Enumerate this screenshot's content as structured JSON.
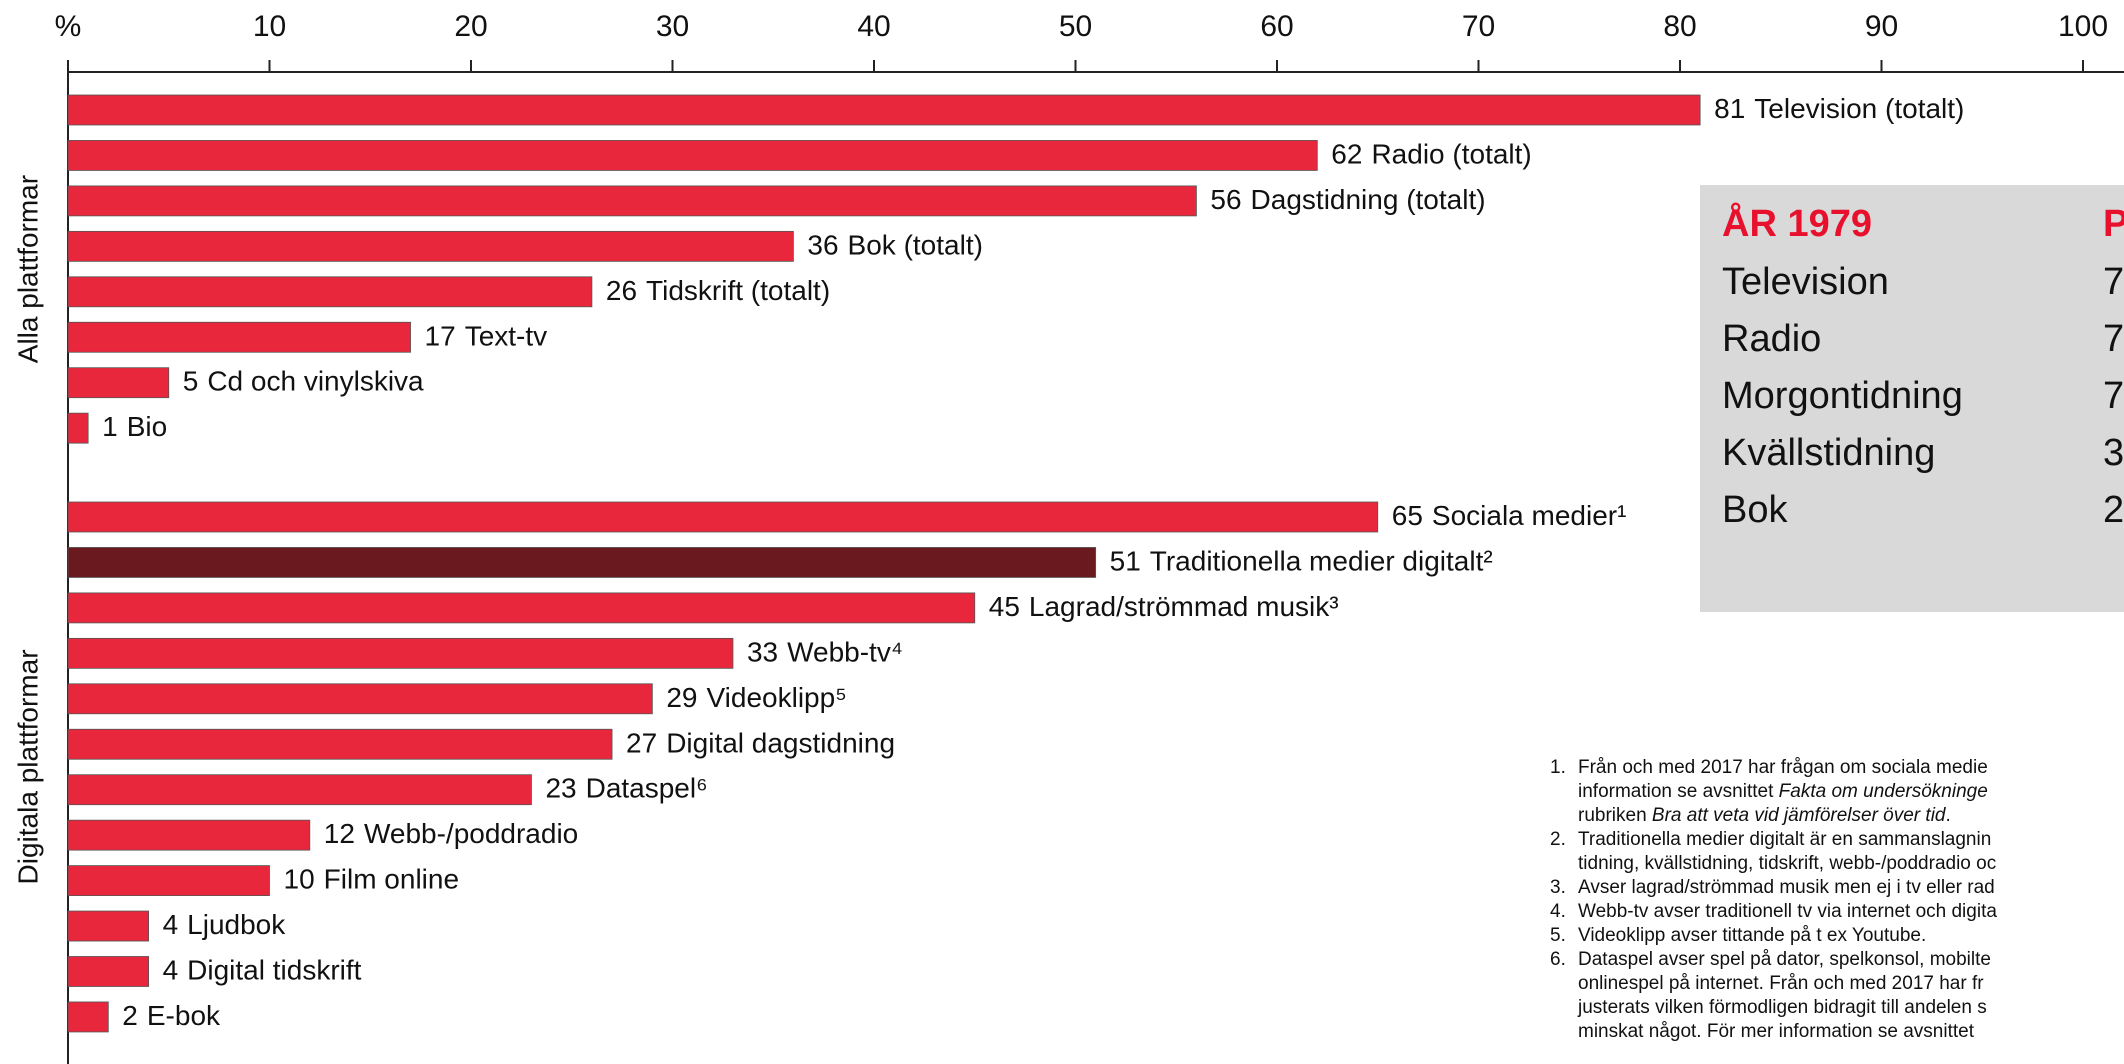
{
  "chart_data": [
    {
      "type": "bar",
      "orientation": "horizontal",
      "group_label": "Alla plattformar",
      "xlim": [
        0,
        100
      ],
      "xticks": [
        {
          "value": 0,
          "label": "%"
        },
        10,
        20,
        30,
        40,
        50,
        60,
        70,
        80,
        90,
        100
      ],
      "categories": [
        "Television (totalt)",
        "Radio (totalt)",
        "Dagstidning (totalt)",
        "Bok (totalt)",
        "Tidskrift (totalt)",
        "Text-tv",
        "Cd och vinylskiva",
        "Bio"
      ],
      "values": [
        81,
        62,
        56,
        36,
        26,
        17,
        5,
        1
      ],
      "colors": [
        "#e8273c",
        "#e8273c",
        "#e8273c",
        "#e8273c",
        "#e8273c",
        "#e8273c",
        "#e8273c",
        "#e8273c"
      ]
    },
    {
      "type": "bar",
      "orientation": "horizontal",
      "group_label": "Digitala plattformar",
      "xlim": [
        0,
        100
      ],
      "categories": [
        "Sociala medier¹",
        "Traditionella medier digitalt²",
        "Lagrad/strömmad musik³",
        "Webb-tv⁴",
        "Videoklipp⁵",
        "Digital dagstidning",
        "Dataspel⁶",
        "Webb-/poddradio",
        "Film online",
        "Ljudbok",
        "Digital tidskrift",
        "E-bok"
      ],
      "values": [
        65,
        51,
        45,
        33,
        29,
        27,
        23,
        12,
        10,
        4,
        4,
        2
      ],
      "colors": [
        "#e8273c",
        "#6a1a1e",
        "#e8273c",
        "#e8273c",
        "#e8273c",
        "#e8273c",
        "#e8273c",
        "#e8273c",
        "#e8273c",
        "#e8273c",
        "#e8273c",
        "#e8273c"
      ]
    }
  ],
  "table": {
    "header": [
      "ÅR 1979",
      "P"
    ],
    "rows": [
      [
        "Television",
        "7"
      ],
      [
        "Radio",
        "7"
      ],
      [
        "Morgontidning",
        "7"
      ],
      [
        "Kvällstidning",
        "3"
      ],
      [
        "Bok",
        "2"
      ]
    ]
  },
  "footnotes": [
    {
      "number": "1.",
      "lines": [
        [
          {
            "text": "Från och med 2017 har frågan om sociala medie"
          }
        ],
        [
          {
            "text": "information se avsnittet "
          },
          {
            "text": "Fakta om undersökninge",
            "italic": true
          }
        ],
        [
          {
            "text": "rubriken "
          },
          {
            "text": "Bra att veta vid jämförelser över tid",
            "italic": true
          },
          {
            "text": "."
          }
        ]
      ]
    },
    {
      "number": "2.",
      "lines": [
        [
          {
            "text": "Traditionella medier digitalt är en sammanslagnin"
          }
        ],
        [
          {
            "text": "tidning, kvällstidning, tidskrift, webb-/poddradio oc"
          }
        ]
      ]
    },
    {
      "number": "3.",
      "lines": [
        [
          {
            "text": "Avser lagrad/strömmad musik men ej i tv eller rad"
          }
        ]
      ]
    },
    {
      "number": "4.",
      "lines": [
        [
          {
            "text": "Webb-tv avser traditionell tv via internet och digita"
          }
        ]
      ]
    },
    {
      "number": "5.",
      "lines": [
        [
          {
            "text": "Videoklipp avser tittande på t ex Youtube."
          }
        ]
      ]
    },
    {
      "number": "6.",
      "lines": [
        [
          {
            "text": "Dataspel avser spel på dator, spelkonsol, mobilte"
          }
        ],
        [
          {
            "text": "onlinespel på internet. Från och med 2017 har fr"
          }
        ],
        [
          {
            "text": "justerats vilken förmodligen bidragit till andelen s"
          }
        ],
        [
          {
            "text": "minskat något. För mer information se avsnittet"
          }
        ]
      ]
    }
  ]
}
